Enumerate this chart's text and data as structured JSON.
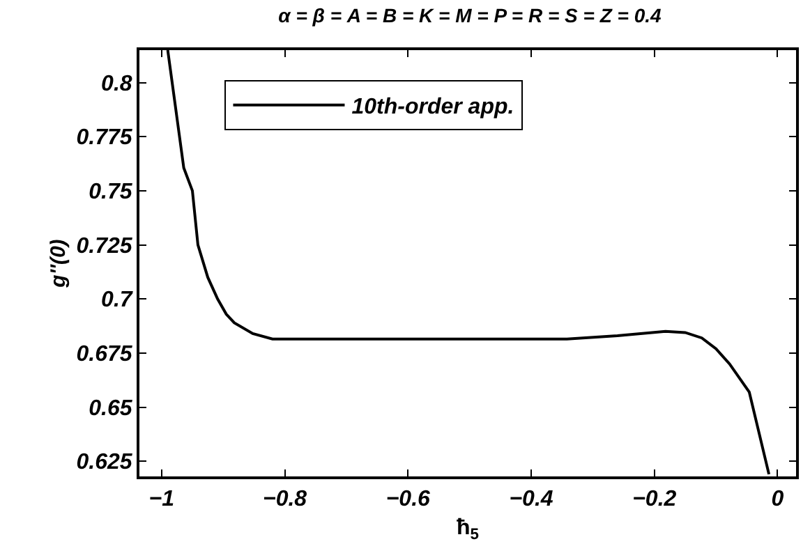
{
  "chart_data": {
    "type": "line",
    "title": "α = β = A = B = K = M = P = R = S = Z = 0.4",
    "xlabel": "ħ$_{5}$",
    "ylabel": "g''(0)",
    "x": [
      -0.99,
      -0.964,
      -0.95,
      -0.941,
      -0.925,
      -0.909,
      -0.895,
      -0.882,
      -0.852,
      -0.82,
      -0.7,
      -0.5,
      -0.342,
      -0.26,
      -0.182,
      -0.15,
      -0.123,
      -0.1,
      -0.078,
      -0.046,
      -0.014
    ],
    "series": [
      {
        "name": "10th-order app.",
        "color": "#000000",
        "values": [
          0.815,
          0.7606,
          0.75,
          0.725,
          0.71,
          0.7,
          0.693,
          0.689,
          0.684,
          0.6815,
          0.6815,
          0.6815,
          0.6815,
          0.683,
          0.685,
          0.6845,
          0.682,
          0.677,
          0.67,
          0.657,
          0.619
        ]
      }
    ],
    "xlim": [
      -1.036,
      0.03
    ],
    "xticks": [
      {
        "value": -1,
        "label": "−1"
      },
      {
        "value": -0.8,
        "label": "−0.8"
      },
      {
        "value": -0.6,
        "label": "−0.6"
      },
      {
        "value": -0.4,
        "label": "−0.4"
      },
      {
        "value": -0.2,
        "label": "−0.2"
      },
      0
    ],
    "ylim": [
      0.618,
      0.815
    ],
    "yticks": [
      0.625,
      0.65,
      0.675,
      0.7,
      0.725,
      0.75,
      0.775,
      0.8
    ],
    "legend": "top",
    "line_style": "solid",
    "marker": "none"
  }
}
